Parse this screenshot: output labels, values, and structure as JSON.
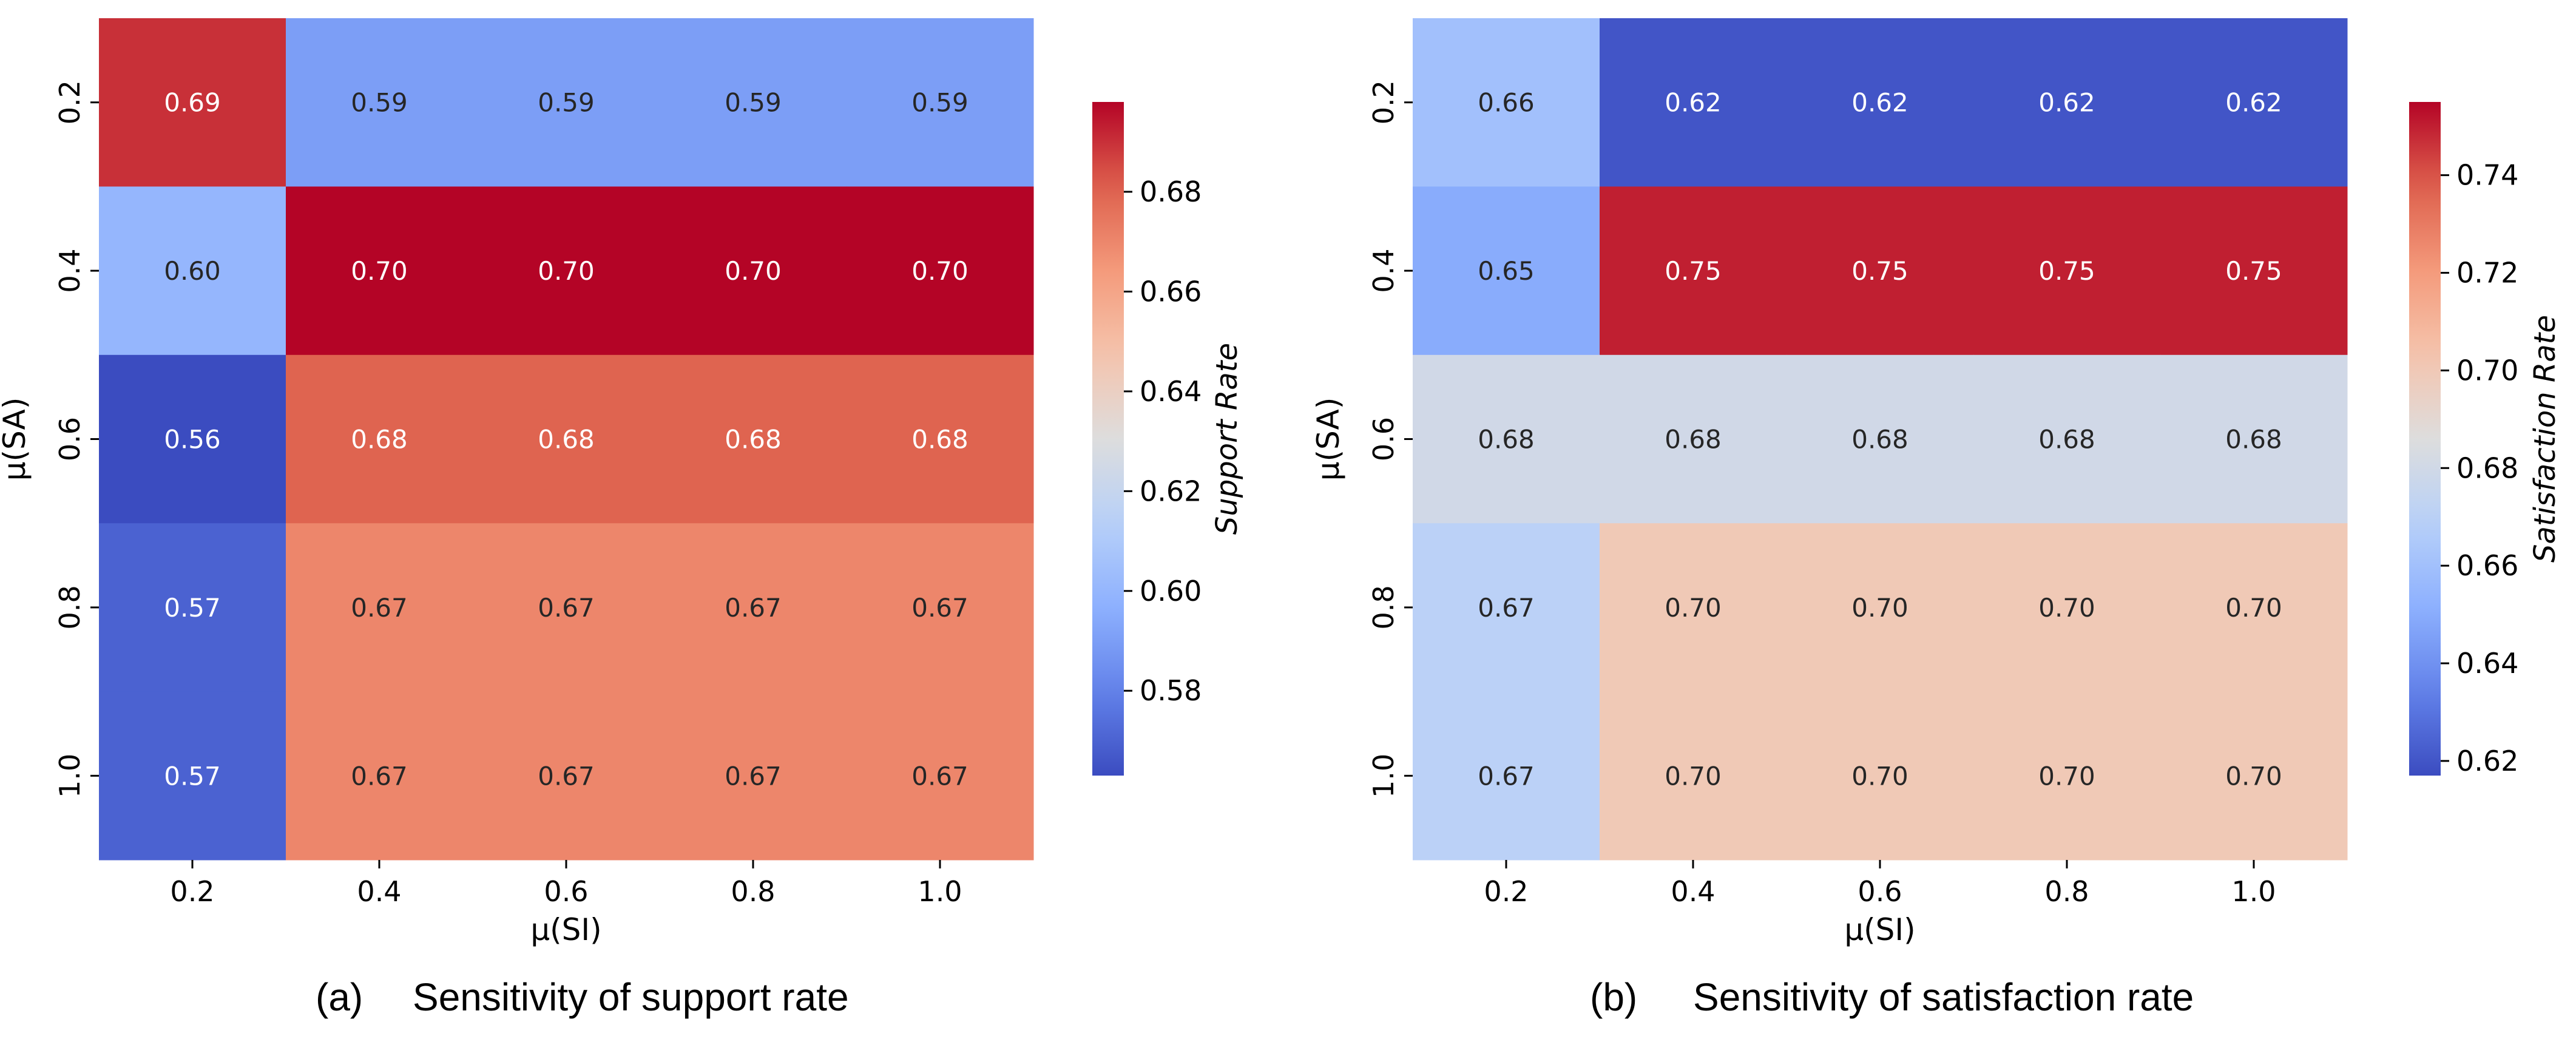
{
  "chart_data": [
    {
      "type": "heatmap",
      "caption_label": "(a)",
      "caption_text": "Sensitivity of support rate",
      "xlabel": "μ(SI)",
      "ylabel": "μ(SA)",
      "x_categories": [
        "0.2",
        "0.4",
        "0.6",
        "0.8",
        "1.0"
      ],
      "y_categories": [
        "0.2",
        "0.4",
        "0.6",
        "0.8",
        "1.0"
      ],
      "values": [
        [
          0.69,
          0.59,
          0.59,
          0.59,
          0.59
        ],
        [
          0.6,
          0.7,
          0.7,
          0.7,
          0.7
        ],
        [
          0.56,
          0.68,
          0.68,
          0.68,
          0.68
        ],
        [
          0.57,
          0.67,
          0.67,
          0.67,
          0.67
        ],
        [
          0.57,
          0.67,
          0.67,
          0.67,
          0.67
        ]
      ],
      "colorbar": {
        "label": "Support Rate",
        "range": [
          0.563,
          0.698
        ],
        "ticks": [
          0.58,
          0.6,
          0.62,
          0.64,
          0.66,
          0.68
        ],
        "tick_labels": [
          "0.58",
          "0.60",
          "0.62",
          "0.64",
          "0.66",
          "0.68"
        ],
        "colormap": "coolwarm"
      }
    },
    {
      "type": "heatmap",
      "caption_label": "(b)",
      "caption_text": "Sensitivity of satisfaction rate",
      "xlabel": "μ(SI)",
      "ylabel": "μ(SA)",
      "x_categories": [
        "0.2",
        "0.4",
        "0.6",
        "0.8",
        "1.0"
      ],
      "y_categories": [
        "0.2",
        "0.4",
        "0.6",
        "0.8",
        "1.0"
      ],
      "values": [
        [
          0.66,
          0.62,
          0.62,
          0.62,
          0.62
        ],
        [
          0.65,
          0.75,
          0.75,
          0.75,
          0.75
        ],
        [
          0.68,
          0.68,
          0.68,
          0.68,
          0.68
        ],
        [
          0.67,
          0.7,
          0.7,
          0.7,
          0.7
        ],
        [
          0.67,
          0.7,
          0.7,
          0.7,
          0.7
        ]
      ],
      "colorbar": {
        "label": "Satisfaction Rate",
        "range": [
          0.617,
          0.755
        ],
        "ticks": [
          0.62,
          0.64,
          0.66,
          0.68,
          0.7,
          0.72,
          0.74
        ],
        "tick_labels": [
          "0.62",
          "0.64",
          "0.66",
          "0.68",
          "0.70",
          "0.72",
          "0.74"
        ],
        "colormap": "coolwarm"
      }
    }
  ]
}
